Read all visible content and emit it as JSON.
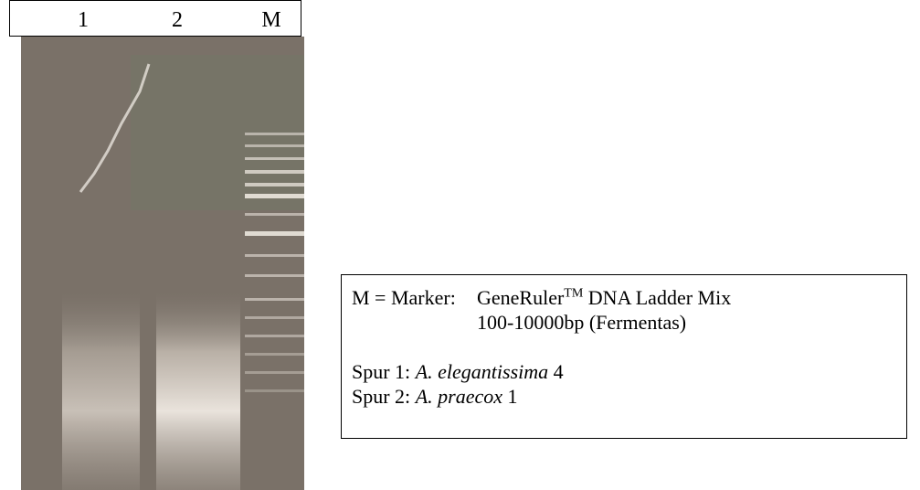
{
  "lanes": [
    "1",
    "2",
    "M"
  ],
  "legend": {
    "marker_label": "M = Marker:",
    "marker_name": "GeneRuler",
    "marker_sup": "TM",
    "marker_rest": "DNA Ladder Mix",
    "marker_range": "100-10000bp (Fermentas)",
    "samples": [
      {
        "prefix": "Spur 1:",
        "genus": "A.",
        "species": "elegantissima",
        "number": "4"
      },
      {
        "prefix": "Spur 2:",
        "genus": "A.",
        "species": "praecox",
        "number": "1"
      }
    ]
  }
}
